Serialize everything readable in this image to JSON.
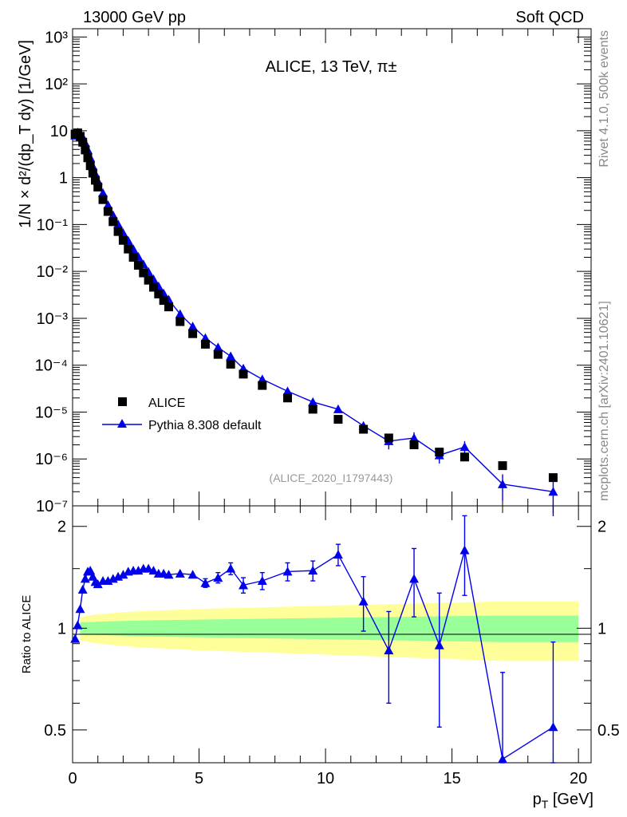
{
  "header": {
    "left": "13000 GeV pp",
    "right": "Soft QCD"
  },
  "side_labels": {
    "rivet": "Rivet 4.1.0,  500k events",
    "source": "mcplots.cern.ch [arXiv:2401.10621]"
  },
  "analysis_ref": "(ALICE_2020_I1797443)",
  "top_title": "ALICE, 13 TeV, π±",
  "chart_data": [
    {
      "type": "scatter",
      "panel": "main",
      "yscale": "log",
      "xlim": [
        0,
        20.5
      ],
      "ylim": [
        1e-07,
        1500
      ],
      "ylabel": "1/N × d²/(dp_T dy) [1/GeV]",
      "ytick_labels": [
        "10⁻⁷",
        "10⁻⁶",
        "10⁻⁵",
        "10⁻⁴",
        "10⁻³",
        "10⁻²",
        "10⁻¹",
        "1",
        "10",
        "10²",
        "10³"
      ],
      "legend": [
        "ALICE",
        "Pythia 8.308 default"
      ],
      "colors": {
        "data": "#000000",
        "mc": "#0000ee"
      },
      "series": [
        {
          "name": "ALICE",
          "x": [
            0.1,
            0.2,
            0.3,
            0.4,
            0.5,
            0.6,
            0.7,
            0.8,
            0.9,
            1.0,
            1.2,
            1.4,
            1.6,
            1.8,
            2.0,
            2.2,
            2.4,
            2.6,
            2.8,
            3.0,
            3.2,
            3.4,
            3.6,
            3.8,
            4.25,
            4.75,
            5.25,
            5.75,
            6.25,
            6.75,
            7.5,
            8.5,
            9.5,
            10.5,
            11.5,
            12.5,
            13.5,
            14.5,
            15.5,
            17.0,
            19.0
          ],
          "y": [
            8.5,
            9.0,
            7.6,
            5.7,
            3.9,
            2.65,
            1.8,
            1.25,
            0.88,
            0.63,
            0.34,
            0.19,
            0.115,
            0.071,
            0.046,
            0.03,
            0.02,
            0.0135,
            0.0093,
            0.0065,
            0.0046,
            0.0033,
            0.0024,
            0.00175,
            0.00085,
            0.00047,
            0.00028,
            0.00017,
            0.000105,
            6.45e-05,
            3.7e-05,
            2e-05,
            1.15e-05,
            7e-06,
            4.3e-06,
            2.8e-06,
            2e-06,
            1.4e-06,
            1.1e-06,
            7.2e-07,
            4e-07
          ]
        },
        {
          "name": "Pythia 8.308 default",
          "x": [
            0.1,
            0.2,
            0.3,
            0.4,
            0.5,
            0.6,
            0.7,
            0.8,
            0.9,
            1.0,
            1.2,
            1.4,
            1.6,
            1.8,
            2.0,
            2.2,
            2.4,
            2.6,
            2.8,
            3.0,
            3.2,
            3.4,
            3.6,
            3.8,
            4.25,
            4.75,
            5.25,
            5.75,
            6.25,
            6.75,
            7.5,
            8.5,
            9.5,
            10.5,
            11.5,
            12.5,
            13.5,
            14.5,
            15.5,
            17.0,
            19.0
          ],
          "y": [
            7.9,
            9.2,
            8.7,
            7.4,
            5.5,
            3.9,
            2.65,
            1.75,
            1.2,
            0.85,
            0.47,
            0.26,
            0.159,
            0.101,
            0.066,
            0.045,
            0.03,
            0.0205,
            0.0142,
            0.0098,
            0.0068,
            0.0048,
            0.0034,
            0.0025,
            0.00123,
            0.00067,
            0.00038,
            0.00024,
            0.000155,
            8.5e-05,
            5e-05,
            2.78e-05,
            1.64e-05,
            1.15e-05,
            5.1e-06,
            2.4e-06,
            2.8e-06,
            1.2e-06,
            1.8e-06,
            2.9e-07,
            2e-07
          ],
          "yerr_low": [
            0,
            0,
            0,
            0,
            0,
            0,
            0,
            0,
            0,
            0,
            0,
            0,
            0,
            0,
            0,
            0,
            0,
            0,
            0,
            0,
            0,
            0,
            0,
            0,
            0,
            0,
            0,
            0,
            0,
            0,
            0,
            0,
            0,
            0,
            8e-07,
            8e-07,
            9e-07,
            4e-07,
            5e-07,
            1.6e-07,
            1.4e-07
          ],
          "yerr_high": [
            0,
            0,
            0,
            0,
            0,
            0,
            0,
            0,
            0,
            0,
            0,
            0,
            0,
            0,
            0,
            0,
            0,
            0,
            0,
            0,
            0,
            0,
            0,
            0,
            0,
            0,
            0,
            0,
            0,
            0,
            0,
            0,
            0,
            0,
            9e-07,
            9e-07,
            9e-07,
            5e-07,
            6e-07,
            1.8e-07,
            1.6e-07
          ]
        }
      ]
    },
    {
      "type": "line",
      "panel": "ratio",
      "xlim": [
        0,
        20.5
      ],
      "ylim": [
        0.4,
        2.3
      ],
      "xlabel": "p_T [GeV]",
      "ylabel": "Ratio to ALICE",
      "yticks": [
        0.5,
        1,
        2
      ],
      "ytick_labels": [
        "0.5",
        "1",
        "2"
      ],
      "xticks": [
        0,
        5,
        10,
        15,
        20
      ],
      "xtick_labels": [
        "0",
        "5",
        "10",
        "15",
        "20"
      ],
      "band_x": [
        0.3,
        1,
        2,
        3,
        5,
        7,
        9,
        11,
        13,
        15,
        17,
        19,
        20
      ],
      "band_green": [
        0.04,
        0.045,
        0.05,
        0.055,
        0.06,
        0.065,
        0.07,
        0.075,
        0.08,
        0.085,
        0.09,
        0.09,
        0.09
      ],
      "band_yellow": [
        0.08,
        0.1,
        0.115,
        0.125,
        0.14,
        0.15,
        0.16,
        0.17,
        0.18,
        0.19,
        0.2,
        0.2,
        0.2
      ],
      "series": [
        {
          "name": "Pythia 8.308 default / ALICE",
          "x": [
            0.1,
            0.2,
            0.3,
            0.4,
            0.5,
            0.6,
            0.7,
            0.8,
            0.9,
            1.0,
            1.2,
            1.4,
            1.6,
            1.8,
            2.0,
            2.2,
            2.4,
            2.6,
            2.8,
            3.0,
            3.2,
            3.4,
            3.6,
            3.8,
            4.25,
            4.75,
            5.25,
            5.75,
            6.25,
            6.75,
            7.5,
            8.5,
            9.5,
            10.5,
            11.5,
            12.5,
            13.5,
            14.5,
            15.5,
            17.0,
            19.0
          ],
          "y": [
            0.93,
            1.02,
            1.14,
            1.3,
            1.4,
            1.47,
            1.48,
            1.42,
            1.37,
            1.35,
            1.38,
            1.38,
            1.4,
            1.42,
            1.44,
            1.47,
            1.48,
            1.48,
            1.5,
            1.5,
            1.48,
            1.45,
            1.45,
            1.44,
            1.45,
            1.44,
            1.36,
            1.41,
            1.5,
            1.34,
            1.38,
            1.47,
            1.48,
            1.65,
            1.2,
            0.86,
            1.4,
            0.89,
            1.7,
            0.41,
            0.51
          ],
          "yerr_low": [
            0,
            0,
            0,
            0,
            0,
            0,
            0,
            0,
            0,
            0,
            0,
            0,
            0,
            0,
            0,
            0,
            0,
            0,
            0,
            0,
            0,
            0,
            0,
            0,
            0,
            0,
            0.04,
            0.05,
            0.06,
            0.07,
            0.08,
            0.09,
            0.1,
            0.12,
            0.22,
            0.26,
            0.32,
            0.38,
            0.45,
            0.25,
            0.3
          ],
          "yerr_high": [
            0,
            0,
            0,
            0,
            0,
            0,
            0,
            0,
            0,
            0,
            0,
            0,
            0,
            0,
            0,
            0,
            0,
            0,
            0,
            0,
            0,
            0,
            0,
            0,
            0,
            0,
            0.04,
            0.05,
            0.06,
            0.07,
            0.08,
            0.09,
            0.1,
            0.12,
            0.22,
            0.26,
            0.32,
            0.38,
            0.45,
            0.33,
            0.4
          ]
        }
      ]
    }
  ]
}
